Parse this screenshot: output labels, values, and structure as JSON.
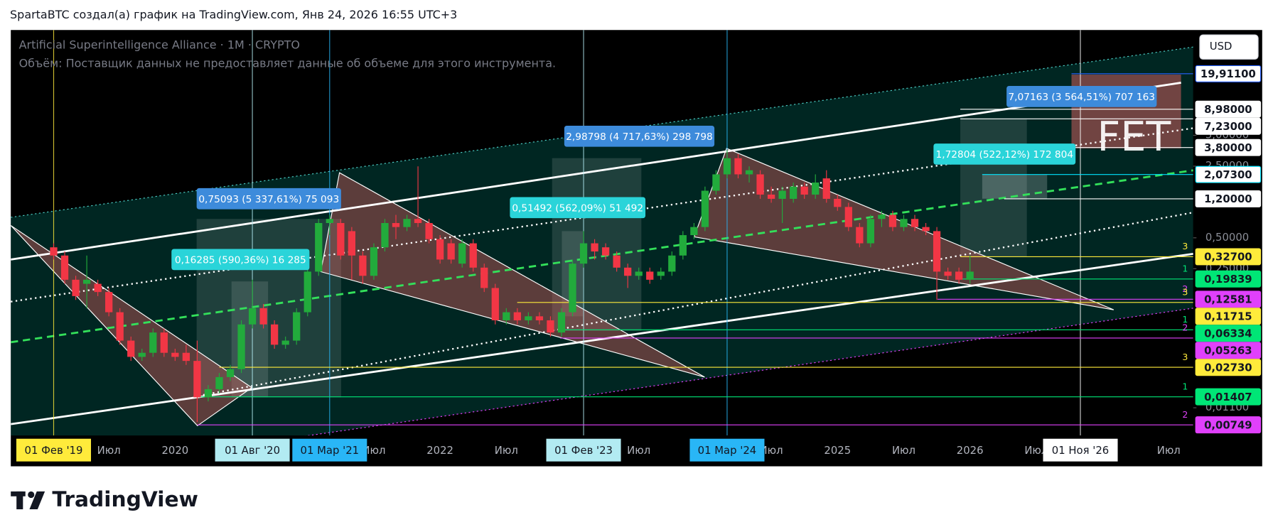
{
  "header": "SpartaBTC создал(а) график на TradingView.com, Янв 24, 2026 16:55 UTC+3",
  "logo": "TradingView",
  "chart_data": {
    "type": "candlestick",
    "title": "Artificial Superintelligence Alliance · 1M · CRYPTO",
    "subtitle": "Объём: Поставщик данных не предоставляет данные об объеме для этого инструмента.",
    "currency": "USD",
    "watermark": "FET",
    "up_color": "#22ab3c",
    "down_color": "#f23645",
    "log_scale": true,
    "x": [
      "2019-02",
      "2019-03",
      "2019-04",
      "2019-05",
      "2019-06",
      "2019-07",
      "2019-08",
      "2019-09",
      "2019-10",
      "2019-11",
      "2019-12",
      "2020-01",
      "2020-02",
      "2020-03",
      "2020-04",
      "2020-05",
      "2020-06",
      "2020-07",
      "2020-08",
      "2020-09",
      "2020-10",
      "2020-11",
      "2020-12",
      "2021-01",
      "2021-02",
      "2021-03",
      "2021-04",
      "2021-05",
      "2021-06",
      "2021-07",
      "2021-08",
      "2021-09",
      "2021-10",
      "2021-11",
      "2021-12",
      "2022-01",
      "2022-02",
      "2022-03",
      "2022-04",
      "2022-05",
      "2022-06",
      "2022-07",
      "2022-08",
      "2022-09",
      "2022-10",
      "2022-11",
      "2022-12",
      "2023-01",
      "2023-02",
      "2023-03",
      "2023-04",
      "2023-05",
      "2023-06",
      "2023-07",
      "2023-08",
      "2023-09",
      "2023-10",
      "2023-11",
      "2023-12",
      "2024-01",
      "2024-02",
      "2024-03",
      "2024-04",
      "2024-05",
      "2024-06",
      "2024-07",
      "2024-08",
      "2024-09",
      "2024-10",
      "2024-11",
      "2024-12",
      "2025-01",
      "2025-02",
      "2025-03",
      "2025-04",
      "2025-05",
      "2025-06",
      "2025-07",
      "2025-08",
      "2025-09",
      "2025-10",
      "2025-11",
      "2025-12",
      "2026-01"
    ],
    "open": [
      0.404,
      0.336,
      0.195,
      0.178,
      0.178,
      0.148,
      0.094,
      0.0497,
      0.0345,
      0.0378,
      0.0596,
      0.0378,
      0.0378,
      0.0315,
      0.0139,
      0.0167,
      0.0219,
      0.0262,
      0.0715,
      0.103,
      0.0715,
      0.0453,
      0.0497,
      0.094,
      0.234,
      0.697,
      0.697,
      0.581,
      0.336,
      0.213,
      0.404,
      0.697,
      0.637,
      0.764,
      0.697,
      0.485,
      0.442,
      0.28,
      0.442,
      0.256,
      0.162,
      0.0784,
      0.094,
      0.0784,
      0.0858,
      0.0784,
      0.0596,
      0.094,
      0.28,
      0.442,
      0.404,
      0.336,
      0.256,
      0.213,
      0.234,
      0.213,
      0.234,
      0.336,
      0.531,
      0.637,
      1.44,
      2.08,
      2.99,
      2.08,
      2.08,
      1.32,
      1.2,
      1.2,
      1.58,
      1.32,
      1.9,
      1.2,
      1.0,
      0.637,
      0.442,
      0.764,
      0.837,
      0.637,
      0.764,
      0.637,
      0.581,
      0.234,
      0.234,
      0.195
    ],
    "high": [
      0.442,
      0.368,
      0.213,
      0.336,
      0.195,
      0.162,
      0.103,
      0.0544,
      0.0414,
      0.0653,
      0.0653,
      0.0414,
      0.0453,
      0.0497,
      0.0183,
      0.024,
      0.0288,
      0.0784,
      0.195,
      0.113,
      0.0784,
      0.0544,
      0.103,
      0.256,
      0.764,
      0.837,
      0.764,
      0.637,
      0.368,
      0.442,
      0.764,
      0.837,
      0.837,
      2.49,
      0.764,
      0.531,
      0.485,
      0.485,
      0.485,
      0.28,
      0.178,
      0.103,
      0.103,
      0.094,
      0.094,
      0.0858,
      0.103,
      0.307,
      0.581,
      0.485,
      0.442,
      0.368,
      0.28,
      0.256,
      0.256,
      0.256,
      0.368,
      0.581,
      0.697,
      1.58,
      2.28,
      3.59,
      3.28,
      2.49,
      2.28,
      1.58,
      1.58,
      1.73,
      1.73,
      2.08,
      2.28,
      1.32,
      1.1,
      0.697,
      0.837,
      0.917,
      0.917,
      0.837,
      0.837,
      0.697,
      0.637,
      0.256,
      0.256,
      0.336
    ],
    "low": [
      0.307,
      0.178,
      0.124,
      0.103,
      0.135,
      0.0858,
      0.0453,
      0.0315,
      0.0315,
      0.0345,
      0.0345,
      0.0315,
      0.0288,
      0.008,
      0.0127,
      0.0152,
      0.02,
      0.024,
      0.0653,
      0.0653,
      0.0414,
      0.0414,
      0.0453,
      0.0858,
      0.213,
      0.531,
      0.307,
      0.195,
      0.178,
      0.195,
      0.368,
      0.485,
      0.581,
      0.637,
      0.442,
      0.28,
      0.28,
      0.256,
      0.234,
      0.148,
      0.0715,
      0.0715,
      0.0715,
      0.0715,
      0.0715,
      0.0544,
      0.0544,
      0.0858,
      0.256,
      0.307,
      0.307,
      0.234,
      0.162,
      0.195,
      0.178,
      0.195,
      0.213,
      0.307,
      0.485,
      0.581,
      1.32,
      1.9,
      1.9,
      1.73,
      1.2,
      1.1,
      0.697,
      1.1,
      1.2,
      1.2,
      1.1,
      0.917,
      0.581,
      0.404,
      0.404,
      0.637,
      0.581,
      0.581,
      0.581,
      0.531,
      0.124,
      0.195,
      0.178,
      0.178
    ],
    "close": [
      0.336,
      0.195,
      0.135,
      0.195,
      0.148,
      0.094,
      0.0497,
      0.0345,
      0.0378,
      0.0596,
      0.0378,
      0.0345,
      0.0315,
      0.0139,
      0.0167,
      0.0219,
      0.0262,
      0.0715,
      0.103,
      0.0715,
      0.0453,
      0.0497,
      0.094,
      0.234,
      0.697,
      0.764,
      0.336,
      0.336,
      0.213,
      0.404,
      0.697,
      0.637,
      0.764,
      0.697,
      0.485,
      0.307,
      0.307,
      0.442,
      0.256,
      0.162,
      0.0784,
      0.094,
      0.0784,
      0.0858,
      0.0784,
      0.0596,
      0.094,
      0.28,
      0.442,
      0.368,
      0.336,
      0.256,
      0.213,
      0.234,
      0.195,
      0.234,
      0.336,
      0.531,
      0.637,
      1.44,
      2.08,
      2.99,
      2.08,
      2.28,
      1.32,
      1.2,
      1.44,
      1.58,
      1.32,
      1.73,
      1.2,
      1.0,
      0.637,
      0.442,
      0.764,
      0.837,
      0.637,
      0.764,
      0.637,
      0.581,
      0.234,
      0.213,
      0.195,
      0.234
    ],
    "xlim": [
      "2018-11",
      "2027-09"
    ],
    "ylim": [
      0.0059,
      53.2
    ],
    "yticks": [
      {
        "value": 5,
        "label": "5,00000"
      },
      {
        "value": 2.5,
        "label": "2,50000"
      },
      {
        "value": 0.5,
        "label": "0,50000"
      },
      {
        "value": 0.25,
        "label": "0,25000"
      },
      {
        "value": 0.011,
        "label": "0,01100"
      }
    ],
    "time_ticks": [
      {
        "value": "2019-07",
        "label": "Июл"
      },
      {
        "value": "2020-01",
        "label": "2020"
      },
      {
        "value": "2021-07",
        "label": "Июл"
      },
      {
        "value": "2022-01",
        "label": "2022"
      },
      {
        "value": "2022-07",
        "label": "Июл"
      },
      {
        "value": "2023-07",
        "label": "Июл"
      },
      {
        "value": "2024-07",
        "label": "Июл"
      },
      {
        "value": "2025-01",
        "label": "2025"
      },
      {
        "value": "2025-07",
        "label": "Июл"
      },
      {
        "value": "2026-01",
        "label": "2026"
      },
      {
        "value": "2026-07",
        "label": "Июл"
      },
      {
        "value": "2027-07",
        "label": "Июл"
      }
    ],
    "markers": [
      {
        "value": "2019-02",
        "label": "01 Фев '19",
        "color": "#ffeb3b"
      },
      {
        "value": "2020-08",
        "label": "01 Авг '20",
        "color": "#b2ebf2"
      },
      {
        "value": "2021-03",
        "label": "01 Мар '21",
        "color": "#29b6f6"
      },
      {
        "value": "2023-02",
        "label": "01 Фев '23",
        "color": "#b2ebf2"
      },
      {
        "value": "2024-03",
        "label": "01 Мар '24",
        "color": "#29b6f6"
      },
      {
        "value": "2026-11",
        "label": "01 Ноя '26",
        "color": "#ffffff"
      }
    ],
    "levels": [
      {
        "value": 19.911,
        "label": "19,91100",
        "color": "#2962ff",
        "fill": "#ffffff"
      },
      {
        "value": 8.98,
        "label": "8,98000",
        "color": "#ffffff",
        "fill": "#ffffff"
      },
      {
        "value": 7.23,
        "label": "7,23000",
        "color": "#ffffff",
        "fill": "#ffffff"
      },
      {
        "value": 3.8,
        "label": "3,80000",
        "color": "#ffffff",
        "fill": "#ffffff"
      },
      {
        "value": 2.073,
        "label": "2,07300",
        "color": "#00e5ff",
        "fill": "#ffffff"
      },
      {
        "value": 1.2,
        "label": "1,20000",
        "color": "#ffffff",
        "fill": "#ffffff"
      },
      {
        "value": 0.327,
        "label": "0,32700",
        "color": "#ffeb3b",
        "fill": "#ffeb3b",
        "tag": "3"
      },
      {
        "value": 0.19839,
        "label": "0,19839",
        "color": "#00e676",
        "fill": "#00e676",
        "tag": "1"
      },
      {
        "value": 0.12581,
        "label": "0,12581",
        "color": "#e040fb",
        "fill": "#e040fb",
        "tag": "2"
      },
      {
        "value": 0.11715,
        "label": "0,11715",
        "color": "#ffeb3b",
        "fill": "#ffeb3b",
        "tag": "3"
      },
      {
        "value": 0.06334,
        "label": "0,06334",
        "color": "#00e676",
        "fill": "#00e676",
        "tag": "1"
      },
      {
        "value": 0.05263,
        "label": "0,05263",
        "color": "#e040fb",
        "fill": "#e040fb",
        "tag": "2"
      },
      {
        "value": 0.0273,
        "label": "0,02730",
        "color": "#ffeb3b",
        "fill": "#ffeb3b",
        "tag": "3"
      },
      {
        "value": 0.01407,
        "label": "0,01407",
        "color": "#00e676",
        "fill": "#00e676",
        "tag": "1"
      },
      {
        "value": 0.00749,
        "label": "0,00749",
        "color": "#e040fb",
        "fill": "#e040fb",
        "tag": "2"
      }
    ],
    "annotations": [
      {
        "text": "0,75093 (5 337,61%) 75 093",
        "color": "#3d8bdb"
      },
      {
        "text": "0,16285 (590,36%) 16 285",
        "color": "#2ad4d9"
      },
      {
        "text": "2,98798 (4 717,63%) 298 798",
        "color": "#3d8bdb"
      },
      {
        "text": "0,51492 (562,09%) 51 492",
        "color": "#2ad4d9"
      },
      {
        "text": "7,07163 (3 564,51%) 707 163",
        "color": "#3d8bdb"
      },
      {
        "text": "1,72804 (522,12%) 172 804",
        "color": "#2ad4d9"
      }
    ]
  }
}
